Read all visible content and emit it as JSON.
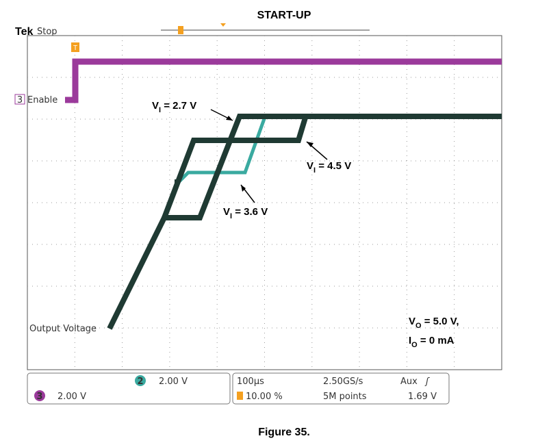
{
  "title": "START-UP",
  "scope": {
    "brand": "Tek",
    "status": "Stop",
    "trigger_marker": "T",
    "channel3_label": {
      "number": "3",
      "name": "Enable"
    },
    "trace_label": "Output Voltage"
  },
  "annotations": [
    {
      "main": "V",
      "sub": "I",
      "rest": " = 2.7 V"
    },
    {
      "main": "V",
      "sub": "I",
      "rest": " = 4.5 V"
    },
    {
      "main": "V",
      "sub": "I",
      "rest": " = 3.6 V"
    }
  ],
  "conditions": [
    {
      "main": "V",
      "sub": "O",
      "rest": " = 5.0 V,"
    },
    {
      "main": "I",
      "sub": "O",
      "rest": " = 0 mA"
    }
  ],
  "status_bar": {
    "ch2_number": "2",
    "ch2_scale": "2.00 V",
    "ch3_number": "3",
    "ch3_scale": "2.00 V",
    "timebase": "100µs",
    "sample_rate": "2.50GS/s",
    "trigger_source": "Aux",
    "trigger_position": "10.00 %",
    "record_length": "5M points",
    "trigger_level": "1.69 V"
  },
  "caption": "Figure 35."
}
